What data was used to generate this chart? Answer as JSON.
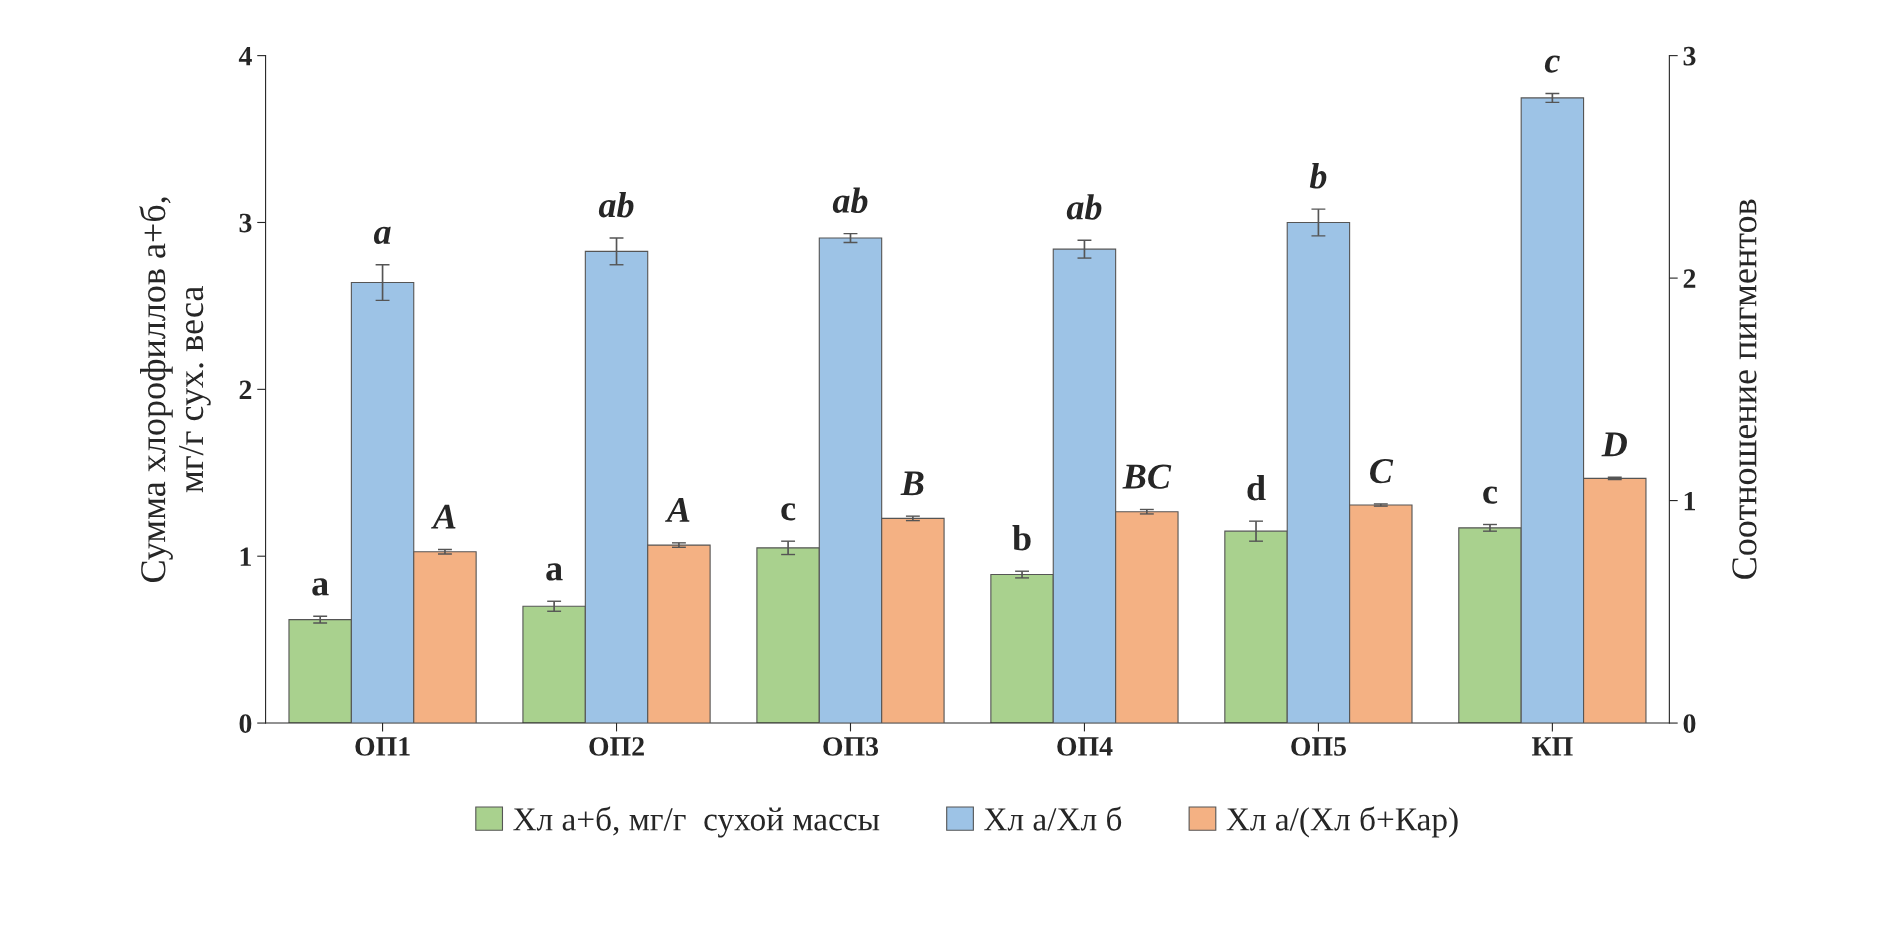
{
  "chart_data": {
    "type": "bar",
    "categories": [
      "ОП1",
      "ОП2",
      "ОП3",
      "ОП4",
      "ОП5",
      "КП"
    ],
    "ylabel": "Сумма хлорофиллов а+б,\nмг/г сух. веса",
    "y2label": "Соотношение пигментов",
    "ylim": [
      0,
      4
    ],
    "yticks": [
      0,
      1,
      2,
      3,
      4
    ],
    "y2lim": [
      0,
      3
    ],
    "y2ticks": [
      0,
      1,
      2,
      3
    ],
    "grid": false,
    "legend": "bottom",
    "series": [
      {
        "name": "Хл а+б, мг/г  сухой массы",
        "color": "#a9d18e",
        "values": [
          0.62,
          0.7,
          1.05,
          0.89,
          1.15,
          1.17
        ],
        "errors": [
          0.02,
          0.03,
          0.04,
          0.02,
          0.06,
          0.02
        ],
        "value_labels": [
          "a",
          "a",
          "c",
          "b",
          "d",
          "c"
        ]
      },
      {
        "name": "Хл а/Хл б",
        "color": "#9dc3e6",
        "axis": "y2",
        "values": [
          1.98,
          2.12,
          2.18,
          2.13,
          2.25,
          2.81
        ],
        "errors": [
          0.08,
          0.06,
          0.02,
          0.04,
          0.06,
          0.02
        ],
        "value_labels": [
          "a",
          "ab",
          "ab",
          "ab",
          "b",
          "c"
        ]
      },
      {
        "name": "Хл а/(Хл б+Кар)",
        "color": "#f4b183",
        "axis": "y2",
        "values": [
          0.77,
          0.8,
          0.92,
          0.95,
          0.98,
          1.1
        ],
        "errors": [
          0.01,
          0.01,
          0.01,
          0.01,
          0.005,
          0.005
        ],
        "value_labels": [
          "A",
          "A",
          "B",
          "BC",
          "C",
          "D"
        ]
      }
    ]
  }
}
